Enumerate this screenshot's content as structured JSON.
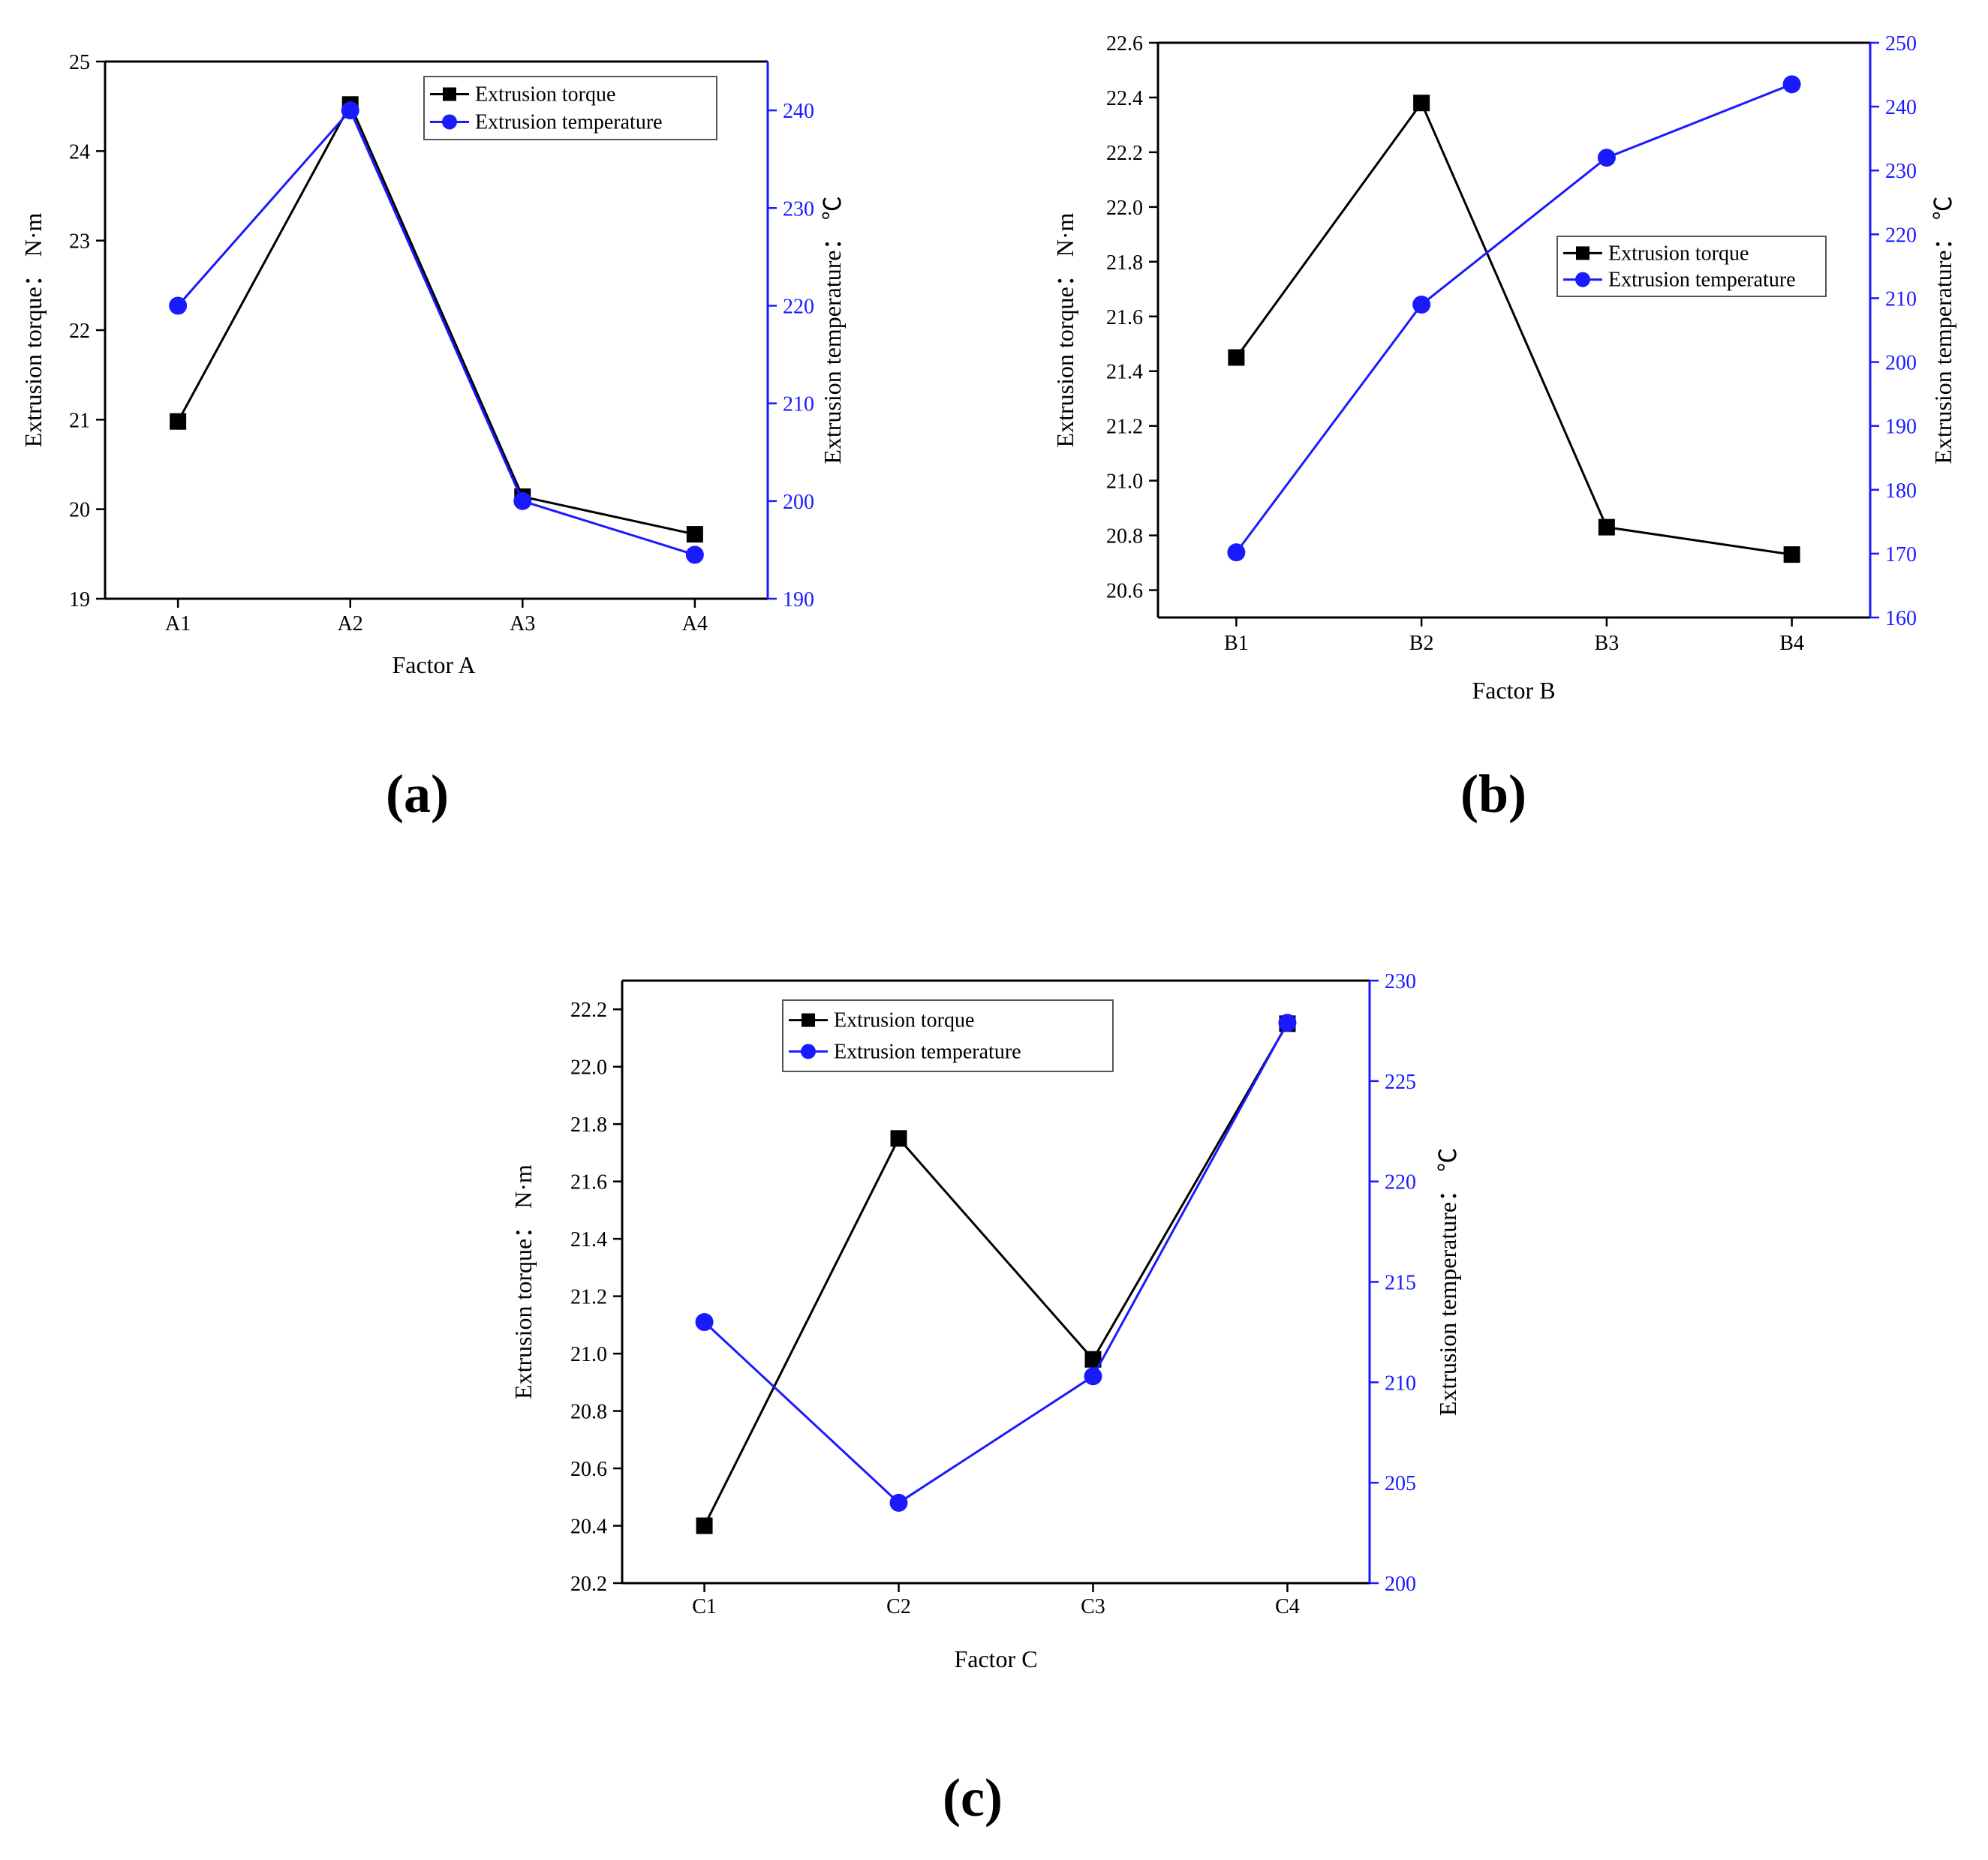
{
  "colors": {
    "torque": "#000000",
    "temperature": "#1a1aff",
    "axis": "#000000"
  },
  "chart_data": [
    {
      "panel": "(a)",
      "type": "line",
      "categories": [
        "A1",
        "A2",
        "A3",
        "A4"
      ],
      "xlabel": "Factor A",
      "ylabel": "Extrusion torque： N·m",
      "ylabel_right": "Extrusion temperature： ℃",
      "ylim": [
        19,
        25
      ],
      "yticks": [
        "19",
        "20",
        "21",
        "22",
        "23",
        "24",
        "25"
      ],
      "ylim_right": [
        190,
        245
      ],
      "yticks_right": [
        "190",
        "200",
        "210",
        "220",
        "230",
        "240"
      ],
      "legend_position": "top-right",
      "series": [
        {
          "name": "Extrusion torque",
          "axis": "left",
          "marker": "square",
          "values": [
            20.98,
            24.52,
            20.14,
            19.72
          ]
        },
        {
          "name": "Extrusion temperature",
          "axis": "right",
          "marker": "circle",
          "values": [
            220,
            240,
            200,
            194.5
          ]
        }
      ]
    },
    {
      "panel": "(b)",
      "type": "line",
      "categories": [
        "B1",
        "B2",
        "B3",
        "B4"
      ],
      "xlabel": "Factor B",
      "ylabel": "Extrusion torque： N·m",
      "ylabel_right": "Extrusion temperature： ℃",
      "ylim": [
        20.5,
        22.6
      ],
      "yticks": [
        "20.6",
        "20.8",
        "21.0",
        "21.2",
        "21.4",
        "21.6",
        "21.8",
        "22.0",
        "22.2",
        "22.4",
        "22.6"
      ],
      "ylim_right": [
        160,
        250
      ],
      "yticks_right": [
        "160",
        "170",
        "180",
        "190",
        "200",
        "210",
        "220",
        "230",
        "240",
        "250"
      ],
      "legend_position": "center-right",
      "series": [
        {
          "name": "Extrusion torque",
          "axis": "left",
          "marker": "square",
          "values": [
            21.45,
            22.38,
            20.83,
            20.73
          ]
        },
        {
          "name": "Extrusion temperature",
          "axis": "right",
          "marker": "circle",
          "values": [
            170.2,
            209,
            232,
            243.5
          ]
        }
      ]
    },
    {
      "panel": "(c)",
      "type": "line",
      "categories": [
        "C1",
        "C2",
        "C3",
        "C4"
      ],
      "xlabel": "Factor C",
      "ylabel": "Extrusion torque： N·m",
      "ylabel_right": "Extrusion temperature： ℃",
      "ylim": [
        20.2,
        22.3
      ],
      "yticks": [
        "20.2",
        "20.4",
        "20.6",
        "20.8",
        "21.0",
        "21.2",
        "21.4",
        "21.6",
        "21.8",
        "22.0",
        "22.2"
      ],
      "ylim_right": [
        200,
        230
      ],
      "yticks_right": [
        "200",
        "205",
        "210",
        "215",
        "220",
        "225",
        "230"
      ],
      "legend_position": "top-left",
      "series": [
        {
          "name": "Extrusion torque",
          "axis": "left",
          "marker": "square",
          "values": [
            20.4,
            21.75,
            20.98,
            22.15
          ]
        },
        {
          "name": "Extrusion temperature",
          "axis": "right",
          "marker": "circle",
          "values": [
            213,
            204,
            210.3,
            227.9
          ]
        }
      ]
    }
  ]
}
